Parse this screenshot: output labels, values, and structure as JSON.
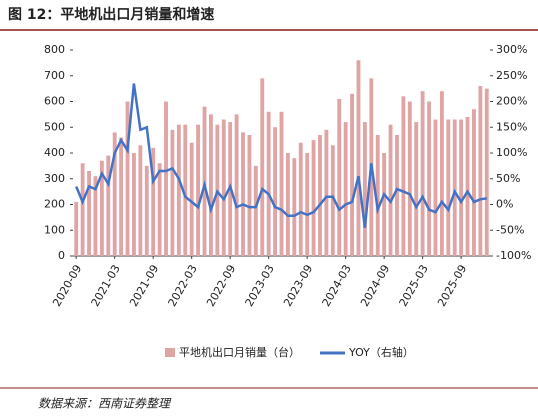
{
  "title": "图 12：平地机出口月销量和增速",
  "source": "数据来源：西南证券整理",
  "chart_data": {
    "type": "bar-line",
    "categories": [
      "2020-09",
      null,
      null,
      null,
      null,
      null,
      "2021-03",
      null,
      null,
      null,
      null,
      null,
      "2021-09",
      null,
      null,
      null,
      null,
      null,
      "2022-03",
      null,
      null,
      null,
      null,
      null,
      "2022-09",
      null,
      null,
      null,
      null,
      null,
      "2023-03",
      null,
      null,
      null,
      null,
      null,
      "2023-09",
      null,
      null,
      null,
      null,
      null,
      "2024-03",
      null,
      null,
      null,
      null,
      null,
      "2024-09",
      null,
      null,
      null,
      null,
      null,
      "2025-03",
      null,
      null,
      null,
      null,
      null,
      "2025-09",
      null,
      null,
      null,
      null
    ],
    "series": [
      {
        "name": "平地机出口月销量（台）",
        "color": "#dfa4a4",
        "axis": "y",
        "values": [
          210,
          360,
          330,
          310,
          370,
          390,
          480,
          460,
          600,
          400,
          430,
          350,
          420,
          360,
          600,
          490,
          510,
          510,
          440,
          510,
          580,
          550,
          510,
          530,
          520,
          550,
          480,
          470,
          350,
          690,
          560,
          500,
          560,
          400,
          380,
          440,
          400,
          450,
          470,
          490,
          430,
          610,
          520,
          630,
          760,
          520,
          690,
          470,
          400,
          510,
          470,
          620,
          600,
          520,
          640,
          600,
          530,
          640,
          530,
          530,
          530,
          540,
          570,
          660,
          650
        ]
      },
      {
        "name": "YOY（右轴）",
        "color": "#4472c4",
        "axis": "y2",
        "values": [
          35,
          5,
          35,
          30,
          60,
          40,
          100,
          125,
          105,
          235,
          145,
          150,
          45,
          65,
          65,
          70,
          50,
          15,
          5,
          -5,
          38,
          -10,
          25,
          10,
          35,
          -5,
          0,
          -5,
          -5,
          30,
          20,
          -5,
          -10,
          -22,
          -22,
          -15,
          -20,
          -15,
          0,
          15,
          15,
          -10,
          0,
          5,
          55,
          -45,
          80,
          -10,
          20,
          5,
          30,
          25,
          20,
          -5,
          15,
          -10,
          -15,
          5,
          -10,
          25,
          5,
          25,
          5,
          10,
          12
        ]
      }
    ],
    "ylim": [
      0,
      800
    ],
    "yticks": [
      0,
      100,
      200,
      300,
      400,
      500,
      600,
      700,
      800
    ],
    "y2lim": [
      -100,
      300
    ],
    "y2ticks": [
      {
        "value": -100,
        "label": "-100%"
      },
      {
        "value": -50,
        "label": "-50%"
      },
      {
        "value": 0,
        "label": "0%"
      },
      {
        "value": 50,
        "label": "50%"
      },
      {
        "value": 100,
        "label": "100%"
      },
      {
        "value": 150,
        "label": "150%"
      },
      {
        "value": 200,
        "label": "200%"
      },
      {
        "value": 250,
        "label": "250%"
      },
      {
        "value": 300,
        "label": "300%"
      }
    ]
  }
}
